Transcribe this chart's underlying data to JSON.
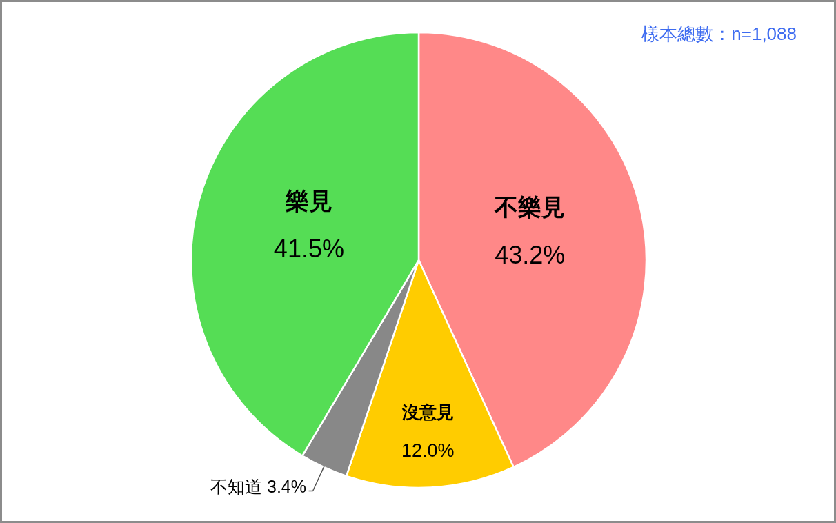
{
  "chart_data": {
    "type": "pie",
    "categories": [
      "不樂見",
      "沒意見",
      "不知道",
      "樂見"
    ],
    "values": [
      43.2,
      12.0,
      3.4,
      41.5
    ],
    "colors": [
      "#ff8888",
      "#ffcc00",
      "#888888",
      "#55dd55"
    ],
    "value_labels": [
      "43.2%",
      "12.0%",
      "3.4%",
      "41.5%"
    ],
    "annotations": [
      "樣本總數：n=1,088"
    ]
  }
}
